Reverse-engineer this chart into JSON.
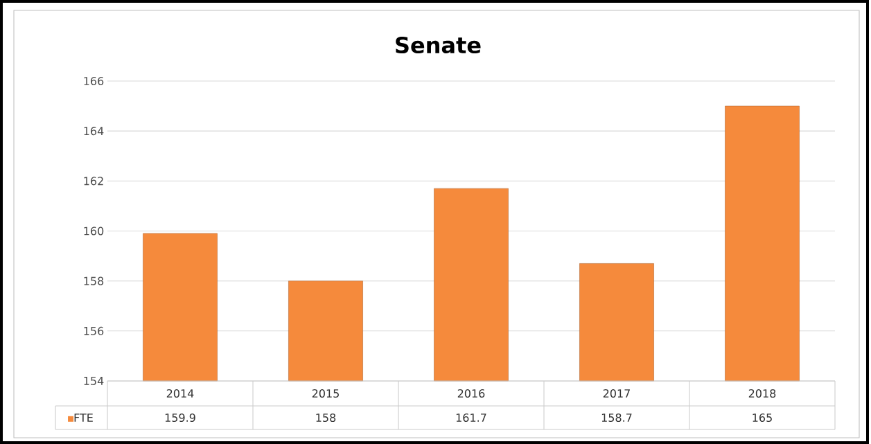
{
  "chart_data": {
    "type": "bar",
    "title": "Senate",
    "categories": [
      "2014",
      "2015",
      "2016",
      "2017",
      "2018"
    ],
    "series": [
      {
        "name": "FTE",
        "color": "#f58a3c",
        "values": [
          159.9,
          158,
          161.7,
          158.7,
          165
        ]
      }
    ],
    "ylim": [
      154,
      166
    ],
    "yticks": [
      154,
      156,
      158,
      160,
      162,
      164,
      166
    ],
    "grid": "y",
    "legend": "bottom",
    "data_labels": true
  }
}
